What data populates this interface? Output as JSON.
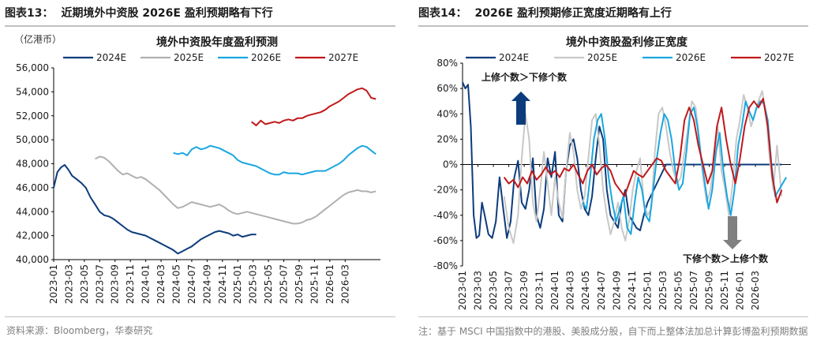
{
  "figure_left": {
    "number": "图表13：",
    "caption": "近期境外中资股 2026E 盈利预期略有下行",
    "source": "资料来源：Bloomberg，华泰研究"
  },
  "figure_right": {
    "number": "图表14：",
    "caption": "2026E 盈利预期修正宽度近期略有上行",
    "source": "注：基于 MSCI 中国指数中的港股、美股成分股，自下而上整体法加总计算彭博盈利预期数据"
  },
  "chart_data": [
    {
      "type": "line",
      "title": "境外中资股年度盈利预测",
      "unit_label": "（亿港币）",
      "xlabel": "",
      "ylabel": "",
      "x_ticks": [
        "2023-01",
        "2023-03",
        "2023-05",
        "2023-07",
        "2023-09",
        "2023-11",
        "2024-01",
        "2024-03",
        "2024-05",
        "2024-07",
        "2024-09",
        "2024-11",
        "2025-01",
        "2025-03",
        "2025-05",
        "2025-07",
        "2025-09",
        "2025-11",
        "2026-01",
        "2026-03"
      ],
      "y_ticks": [
        "40,000",
        "42,000",
        "44,000",
        "46,000",
        "48,000",
        "50,000",
        "52,000",
        "54,000",
        "56,000"
      ],
      "xlim": [
        2023.0,
        2026.55
      ],
      "ylim": [
        40000,
        56000
      ],
      "legend_position": "top",
      "grid": false,
      "series": [
        {
          "name": "2024E",
          "color": "#0c3c7c",
          "x": [
            2023.0,
            2023.04,
            2023.08,
            2023.12,
            2023.16,
            2023.2,
            2023.25,
            2023.3,
            2023.35,
            2023.4,
            2023.45,
            2023.5,
            2023.55,
            2023.6,
            2023.65,
            2023.7,
            2023.75,
            2023.8,
            2023.85,
            2023.9,
            2023.95,
            2024.0,
            2024.05,
            2024.1,
            2024.15,
            2024.2,
            2024.25,
            2024.3,
            2024.35,
            2024.4,
            2024.45,
            2024.5,
            2024.55,
            2024.6,
            2024.65,
            2024.7,
            2024.75,
            2024.8,
            2024.85,
            2024.9,
            2024.95,
            2025.0,
            2025.05,
            2025.1,
            2025.15,
            2025.2
          ],
          "y": [
            46000,
            47300,
            47700,
            47900,
            47500,
            47000,
            46700,
            46400,
            46000,
            45200,
            44600,
            44000,
            43700,
            43600,
            43400,
            43100,
            42800,
            42500,
            42300,
            42200,
            42100,
            42000,
            41800,
            41600,
            41400,
            41200,
            41000,
            40800,
            40500,
            40700,
            40900,
            41100,
            41400,
            41700,
            41900,
            42100,
            42300,
            42400,
            42300,
            42200,
            42000,
            42100,
            41900,
            42000,
            42100,
            42100
          ]
        },
        {
          "name": "2025E",
          "color": "#b0b0b0",
          "x": [
            2023.45,
            2023.5,
            2023.55,
            2023.6,
            2023.65,
            2023.7,
            2023.75,
            2023.8,
            2023.85,
            2023.9,
            2023.95,
            2024.0,
            2024.05,
            2024.1,
            2024.15,
            2024.2,
            2024.25,
            2024.3,
            2024.35,
            2024.4,
            2024.45,
            2024.5,
            2024.55,
            2024.6,
            2024.65,
            2024.7,
            2024.75,
            2024.8,
            2024.85,
            2024.9,
            2024.95,
            2025.0,
            2025.05,
            2025.1,
            2025.15,
            2025.2,
            2025.25,
            2025.3,
            2025.35,
            2025.4,
            2025.45,
            2025.5,
            2025.55,
            2025.6,
            2025.65,
            2025.7,
            2025.75,
            2025.8,
            2025.85,
            2025.9,
            2025.95,
            2026.0,
            2026.05,
            2026.1,
            2026.15,
            2026.2,
            2026.25,
            2026.3,
            2026.35,
            2026.4,
            2026.45,
            2026.5
          ],
          "y": [
            48400,
            48600,
            48500,
            48200,
            47800,
            47400,
            47100,
            47200,
            47000,
            46800,
            46900,
            46700,
            46400,
            46100,
            45800,
            45400,
            45000,
            44600,
            44300,
            44400,
            44600,
            44800,
            44700,
            44600,
            44500,
            44400,
            44500,
            44600,
            44400,
            44100,
            43900,
            43800,
            43900,
            44000,
            43900,
            43800,
            43700,
            43600,
            43500,
            43400,
            43300,
            43200,
            43100,
            43000,
            43000,
            43100,
            43300,
            43400,
            43600,
            43900,
            44200,
            44500,
            44800,
            45100,
            45400,
            45600,
            45700,
            45800,
            45700,
            45700,
            45600,
            45700
          ]
        },
        {
          "name": "2026E",
          "color": "#1aa7e0",
          "x": [
            2024.3,
            2024.35,
            2024.4,
            2024.45,
            2024.5,
            2024.55,
            2024.6,
            2024.65,
            2024.7,
            2024.75,
            2024.8,
            2024.85,
            2024.9,
            2024.95,
            2025.0,
            2025.05,
            2025.1,
            2025.15,
            2025.2,
            2025.25,
            2025.3,
            2025.35,
            2025.4,
            2025.45,
            2025.5,
            2025.55,
            2025.6,
            2025.65,
            2025.7,
            2025.75,
            2025.8,
            2025.85,
            2025.9,
            2025.95,
            2026.0,
            2026.05,
            2026.1,
            2026.15,
            2026.2,
            2026.25,
            2026.3,
            2026.35,
            2026.4,
            2026.45,
            2026.5
          ],
          "y": [
            48900,
            48800,
            48900,
            48700,
            49200,
            49400,
            49200,
            49300,
            49500,
            49400,
            49300,
            49100,
            48900,
            48700,
            48300,
            48100,
            48000,
            47900,
            47800,
            47600,
            47400,
            47200,
            47100,
            47100,
            47300,
            47200,
            47200,
            47200,
            47100,
            47200,
            47300,
            47400,
            47400,
            47400,
            47600,
            47800,
            48000,
            48300,
            48700,
            49000,
            49300,
            49500,
            49400,
            49100,
            48800
          ]
        },
        {
          "name": "2027E",
          "color": "#c0191b",
          "x": [
            2025.15,
            2025.2,
            2025.25,
            2025.3,
            2025.35,
            2025.4,
            2025.45,
            2025.5,
            2025.55,
            2025.6,
            2025.65,
            2025.7,
            2025.75,
            2025.8,
            2025.85,
            2025.9,
            2025.95,
            2026.0,
            2026.05,
            2026.1,
            2026.15,
            2026.2,
            2026.25,
            2026.3,
            2026.35,
            2026.4,
            2026.45,
            2026.5
          ],
          "y": [
            51500,
            51200,
            51600,
            51300,
            51400,
            51500,
            51400,
            51600,
            51700,
            51600,
            51800,
            51800,
            52000,
            52100,
            52200,
            52300,
            52500,
            52800,
            53000,
            53200,
            53500,
            53800,
            54000,
            54200,
            54300,
            54100,
            53500,
            53400
          ]
        }
      ]
    },
    {
      "type": "line",
      "title": "境外中资股盈利修正宽度",
      "xlabel": "",
      "ylabel": "",
      "x_ticks": [
        "2023-01",
        "2023-03",
        "2023-05",
        "2023-07",
        "2023-09",
        "2023-11",
        "2024-01",
        "2024-03",
        "2024-05",
        "2024-07",
        "2024-09",
        "2024-11",
        "2025-01",
        "2025-03",
        "2025-05",
        "2025-07",
        "2025-09",
        "2025-11",
        "2026-01",
        "2026-03"
      ],
      "y_ticks": [
        "80%",
        "60%",
        "40%",
        "20%",
        "0%",
        "-20%",
        "-40%",
        "-60%",
        "-80%"
      ],
      "xlim": [
        2023.0,
        2026.55
      ],
      "ylim": [
        -80,
        80
      ],
      "legend_position": "top",
      "grid": false,
      "annotations": {
        "up": "上修个数＞下修个数",
        "down": "下修个数＞上修个数"
      },
      "series": [
        {
          "name": "2024E",
          "color": "#0c3c7c",
          "x": [
            2023.0,
            2023.03,
            2023.06,
            2023.09,
            2023.12,
            2023.15,
            2023.18,
            2023.21,
            2023.24,
            2023.28,
            2023.32,
            2023.36,
            2023.4,
            2023.44,
            2023.48,
            2023.52,
            2023.56,
            2023.6,
            2023.64,
            2023.68,
            2023.72,
            2023.76,
            2023.8,
            2023.84,
            2023.88,
            2023.92,
            2023.96,
            2024.0,
            2024.04,
            2024.08,
            2024.12,
            2024.16,
            2024.2,
            2024.24,
            2024.28,
            2024.32,
            2024.36,
            2024.4,
            2024.44,
            2024.48,
            2024.52,
            2024.56,
            2024.6,
            2024.64,
            2024.68,
            2024.72,
            2024.76,
            2024.8,
            2024.84,
            2024.88,
            2024.92,
            2024.96,
            2025.0,
            2025.2,
            2025.6,
            2026.0,
            2026.35,
            2026.45
          ],
          "y": [
            65,
            60,
            63,
            30,
            -40,
            -58,
            -56,
            -30,
            -40,
            -55,
            -58,
            -45,
            -10,
            -35,
            -58,
            -45,
            -10,
            3,
            -30,
            -35,
            -20,
            5,
            -40,
            -50,
            -35,
            5,
            -10,
            10,
            -40,
            -45,
            -5,
            15,
            20,
            5,
            -20,
            -35,
            -40,
            -25,
            5,
            30,
            20,
            -20,
            -40,
            -45,
            -50,
            -30,
            -20,
            -40,
            -45,
            -50,
            -52,
            -40,
            -30,
            0,
            0,
            0,
            0,
            0
          ]
        },
        {
          "name": "2025E",
          "color": "#c8c8c8",
          "x": [
            2023.45,
            2023.5,
            2023.55,
            2023.6,
            2023.64,
            2023.68,
            2023.72,
            2023.76,
            2023.8,
            2023.84,
            2023.88,
            2023.92,
            2023.96,
            2024.0,
            2024.04,
            2024.08,
            2024.12,
            2024.16,
            2024.2,
            2024.24,
            2024.28,
            2024.32,
            2024.36,
            2024.4,
            2024.44,
            2024.48,
            2024.52,
            2024.56,
            2024.6,
            2024.64,
            2024.68,
            2024.72,
            2024.76,
            2024.8,
            2024.84,
            2024.88,
            2024.92,
            2024.96,
            2025.0,
            2025.04,
            2025.08,
            2025.12,
            2025.16,
            2025.2,
            2025.24,
            2025.28,
            2025.32,
            2025.36,
            2025.4,
            2025.44,
            2025.48,
            2025.52,
            2025.56,
            2025.6,
            2025.64,
            2025.68,
            2025.72,
            2025.76,
            2025.8,
            2025.84,
            2025.88,
            2025.92,
            2025.96,
            2026.0,
            2026.04,
            2026.08,
            2026.12,
            2026.16,
            2026.2,
            2026.24,
            2026.28,
            2026.32,
            2026.36,
            2026.4,
            2026.45
          ],
          "y": [
            -25,
            -50,
            -62,
            -40,
            5,
            40,
            20,
            -30,
            -45,
            -20,
            10,
            -15,
            -40,
            -10,
            -30,
            -42,
            -5,
            25,
            10,
            -20,
            -35,
            -25,
            5,
            35,
            40,
            15,
            -20,
            -40,
            -55,
            -45,
            -30,
            -50,
            -60,
            -45,
            -20,
            -5,
            5,
            -30,
            -40,
            -35,
            10,
            40,
            45,
            30,
            10,
            -5,
            -15,
            -10,
            10,
            30,
            50,
            45,
            20,
            -10,
            -30,
            -20,
            5,
            30,
            -5,
            -20,
            -40,
            -15,
            20,
            35,
            55,
            45,
            30,
            40,
            50,
            58,
            40,
            5,
            -20,
            15,
            -25
          ]
        },
        {
          "name": "2026E",
          "color": "#1aa7e0",
          "x": [
            2024.3,
            2024.34,
            2024.38,
            2024.42,
            2024.46,
            2024.5,
            2024.54,
            2024.58,
            2024.62,
            2024.66,
            2024.7,
            2024.74,
            2024.78,
            2024.82,
            2024.86,
            2024.9,
            2024.94,
            2024.98,
            2025.02,
            2025.06,
            2025.1,
            2025.14,
            2025.18,
            2025.22,
            2025.26,
            2025.3,
            2025.34,
            2025.38,
            2025.42,
            2025.46,
            2025.5,
            2025.54,
            2025.58,
            2025.62,
            2025.66,
            2025.7,
            2025.74,
            2025.78,
            2025.82,
            2025.86,
            2025.9,
            2025.94,
            2025.98,
            2026.02,
            2026.06,
            2026.1,
            2026.14,
            2026.18,
            2026.22,
            2026.26,
            2026.3,
            2026.34,
            2026.38,
            2026.42,
            2026.46,
            2026.5
          ],
          "y": [
            -30,
            -35,
            -10,
            20,
            35,
            40,
            20,
            -10,
            -30,
            -45,
            -35,
            -25,
            -50,
            -55,
            -30,
            -10,
            -20,
            -40,
            -45,
            -20,
            5,
            25,
            40,
            35,
            20,
            -5,
            -20,
            -15,
            10,
            40,
            45,
            30,
            5,
            -15,
            -35,
            -20,
            10,
            25,
            -5,
            -25,
            -40,
            -20,
            15,
            30,
            50,
            42,
            35,
            45,
            50,
            48,
            35,
            0,
            -25,
            -20,
            -15,
            -10
          ]
        },
        {
          "name": "2027E",
          "color": "#c0191b",
          "x": [
            2023.45,
            2023.5,
            2023.55,
            2023.6,
            2023.65,
            2023.7,
            2023.75,
            2023.8,
            2023.85,
            2023.9,
            2023.95,
            2024.0,
            2024.05,
            2024.1,
            2024.15,
            2024.2,
            2024.25,
            2024.3,
            2024.35,
            2024.4,
            2024.45,
            2024.5,
            2024.55,
            2024.6,
            2024.65,
            2024.7,
            2024.75,
            2024.8,
            2024.85,
            2024.9,
            2024.95,
            2025.0,
            2025.05,
            2025.1,
            2025.15,
            2025.2,
            2025.25,
            2025.3,
            2025.35,
            2025.4,
            2025.45,
            2025.5,
            2025.55,
            2025.6,
            2025.65,
            2025.7,
            2025.75,
            2025.8,
            2025.85,
            2025.9,
            2025.95,
            2026.0,
            2026.05,
            2026.1,
            2026.15,
            2026.2,
            2026.25,
            2026.3,
            2026.35,
            2026.4,
            2026.45
          ],
          "y": [
            -10,
            -15,
            -12,
            -18,
            -10,
            -15,
            -5,
            -12,
            -8,
            -2,
            -8,
            -5,
            -10,
            -3,
            -5,
            0,
            -8,
            -15,
            -5,
            0,
            -8,
            -3,
            0,
            -5,
            -15,
            -20,
            -25,
            -15,
            -5,
            -8,
            -10,
            -5,
            0,
            5,
            3,
            -5,
            -10,
            -15,
            5,
            35,
            45,
            35,
            15,
            0,
            -15,
            -5,
            30,
            45,
            20,
            0,
            -15,
            5,
            30,
            45,
            50,
            45,
            52,
            30,
            -10,
            -30,
            -20
          ]
        }
      ]
    }
  ]
}
